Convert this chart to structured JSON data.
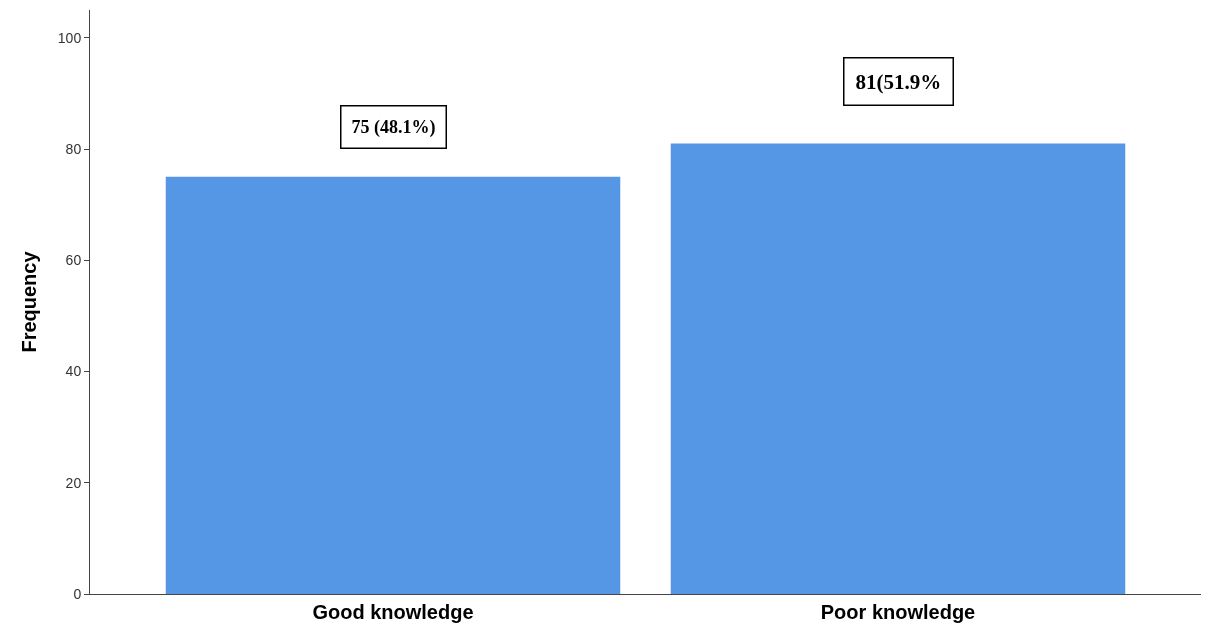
{
  "chart_data": {
    "type": "bar",
    "ylabel": "Frequency",
    "categories": [
      "Good knowledge",
      "Poor knowledge"
    ],
    "values": [
      75,
      81
    ],
    "color": "#5596e5",
    "value_labels": [
      "75 (48.1%)",
      "81(51.9%"
    ],
    "ylim": [
      0,
      105
    ],
    "yticks": [
      0,
      20,
      40,
      60,
      80,
      100
    ]
  }
}
